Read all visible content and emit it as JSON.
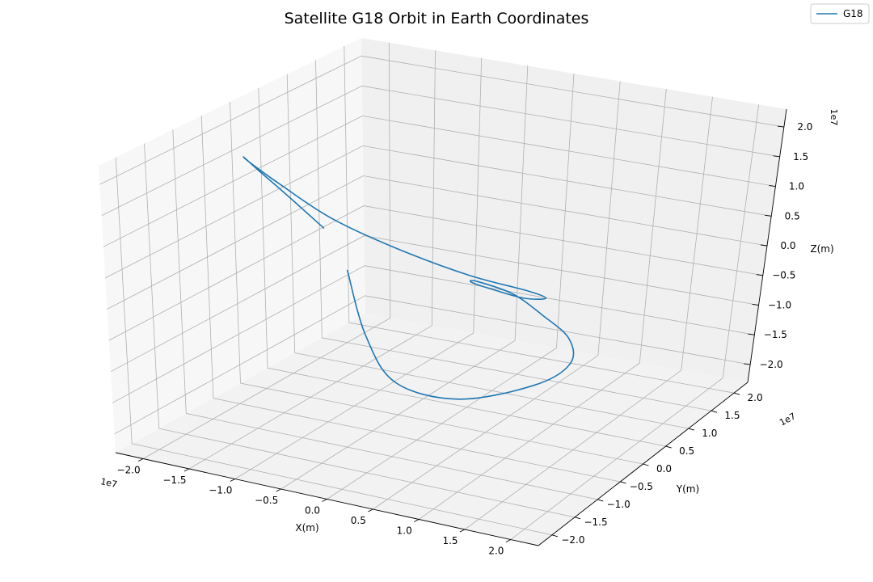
{
  "chart_data": {
    "type": "line",
    "title": "Satellite G18 Orbit in Earth Coordinates",
    "xlabel": "X(m)",
    "ylabel": "Y(m)",
    "zlabel": "Z(m)",
    "x_offset": "1e7",
    "y_offset": "1e7",
    "z_offset": "1e7",
    "x_ticks": [
      "−2.0",
      "−1.5",
      "−1.0",
      "−0.5",
      "0.0",
      "0.5",
      "1.0",
      "1.5",
      "2.0"
    ],
    "y_ticks": [
      "−2.0",
      "−1.5",
      "−1.0",
      "−0.5",
      "0.0",
      "0.5",
      "1.0",
      "1.5",
      "2.0"
    ],
    "z_ticks": [
      "−2.0",
      "−1.5",
      "−1.0",
      "−0.5",
      "0.0",
      "0.5",
      "1.0",
      "1.5",
      "2.0"
    ],
    "x_tick_values": [
      -2.0,
      -1.5,
      -1.0,
      -0.5,
      0.0,
      0.5,
      1.0,
      1.5,
      2.0
    ],
    "y_tick_values": [
      -2.0,
      -1.5,
      -1.0,
      -0.5,
      0.0,
      0.5,
      1.0,
      1.5,
      2.0
    ],
    "z_tick_values": [
      -2.0,
      -1.5,
      -1.0,
      -0.5,
      0.0,
      0.5,
      1.0,
      1.5,
      2.0
    ],
    "xlim": [
      -2.3,
      2.3
    ],
    "ylim": [
      -2.3,
      2.3
    ],
    "zlim": [
      -2.3,
      2.3
    ],
    "grid": true,
    "legend": {
      "position": "top-right",
      "entries": [
        "G18"
      ]
    },
    "series": [
      {
        "name": "G18",
        "color": "#1f77b4",
        "x": [
          -0.3,
          -0.8,
          -1.3,
          -1.8,
          -2.1,
          -2.15,
          -1.95,
          -1.5,
          -0.8,
          -0.1,
          0.35,
          0.5,
          0.55,
          0.7,
          1.1,
          1.7,
          2.1,
          2.2,
          1.95,
          1.35,
          0.6,
          0.1,
          -0.05,
          -0.12
        ],
        "y": [
          -1.7,
          -1.5,
          -1.15,
          -0.6,
          0.0,
          0.6,
          1.15,
          1.6,
          1.85,
          1.8,
          1.4,
          0.7,
          0.0,
          -0.7,
          -1.3,
          -1.7,
          -1.85,
          -1.5,
          -1.0,
          -0.6,
          -0.75,
          -1.1,
          -1.4,
          -1.6
        ],
        "z": [
          1.55,
          1.85,
          1.95,
          1.8,
          1.35,
          0.7,
          -0.05,
          -0.65,
          -1.05,
          -1.1,
          -0.9,
          -0.5,
          0.0,
          0.5,
          0.9,
          1.05,
          0.9,
          0.4,
          -0.3,
          -1.0,
          -1.35,
          -1.05,
          -0.2,
          0.9
        ]
      }
    ]
  }
}
